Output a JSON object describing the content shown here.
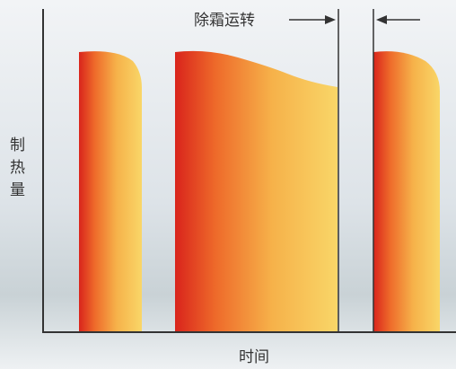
{
  "annotation": "除霜运转",
  "y_axis_label": "制热量",
  "x_axis_label": "时间"
}
